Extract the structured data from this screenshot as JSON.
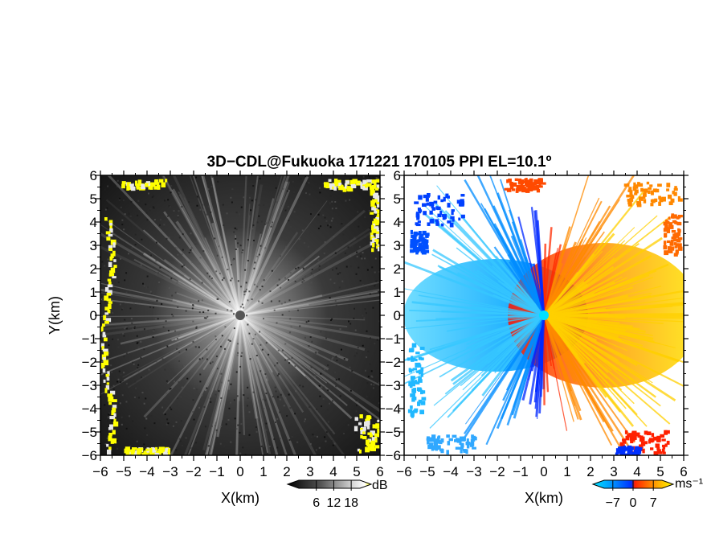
{
  "chart_data": [
    {
      "type": "heatmap",
      "panel": "left",
      "title": "3D−CDL@Fukuoka 171221 170105 PPI EL=10.1º",
      "xlabel": "X(km)",
      "ylabel": "Y(km)",
      "xlim": [
        -6,
        6
      ],
      "ylim": [
        -6,
        6
      ],
      "xticks": [
        "−6",
        "−5",
        "−4",
        "−3",
        "−2",
        "−1",
        "0",
        "1",
        "2",
        "3",
        "4",
        "5",
        "6"
      ],
      "yticks": [
        "−6",
        "−5",
        "−4",
        "−3",
        "−2",
        "−1",
        "0",
        "1",
        "2",
        "3",
        "4",
        "5",
        "6"
      ],
      "colorbar": {
        "unit": "dB",
        "tick_labels": [
          "6",
          "12",
          "18"
        ],
        "tick_values": [
          6,
          12,
          18
        ],
        "range": [
          0,
          21
        ],
        "colormap": [
          "#000000",
          "#505050",
          "#b0b0b0",
          "#ffffff",
          "#ffff00"
        ]
      },
      "grid": false
    },
    {
      "type": "heatmap",
      "panel": "right",
      "xlabel": "X(km)",
      "xlim": [
        -6,
        6
      ],
      "ylim": [
        -6,
        6
      ],
      "xticks": [
        "−6",
        "−5",
        "−4",
        "−3",
        "−2",
        "−1",
        "0",
        "1",
        "2",
        "3",
        "4",
        "5",
        "6"
      ],
      "yticks": [
        "−6",
        "−5",
        "−4",
        "−3",
        "−2",
        "−1",
        "0",
        "1",
        "2",
        "3",
        "4",
        "5",
        "6"
      ],
      "colorbar": {
        "unit": "ms⁻¹",
        "tick_labels": [
          "−7",
          "0",
          "7"
        ],
        "tick_values": [
          -7,
          0,
          7
        ],
        "range": [
          -10,
          10
        ],
        "colormap": [
          "#00e5ff",
          "#0090ff",
          "#0030ff",
          "#ff2000",
          "#ff9000",
          "#ffff00"
        ]
      },
      "grid": false
    }
  ]
}
